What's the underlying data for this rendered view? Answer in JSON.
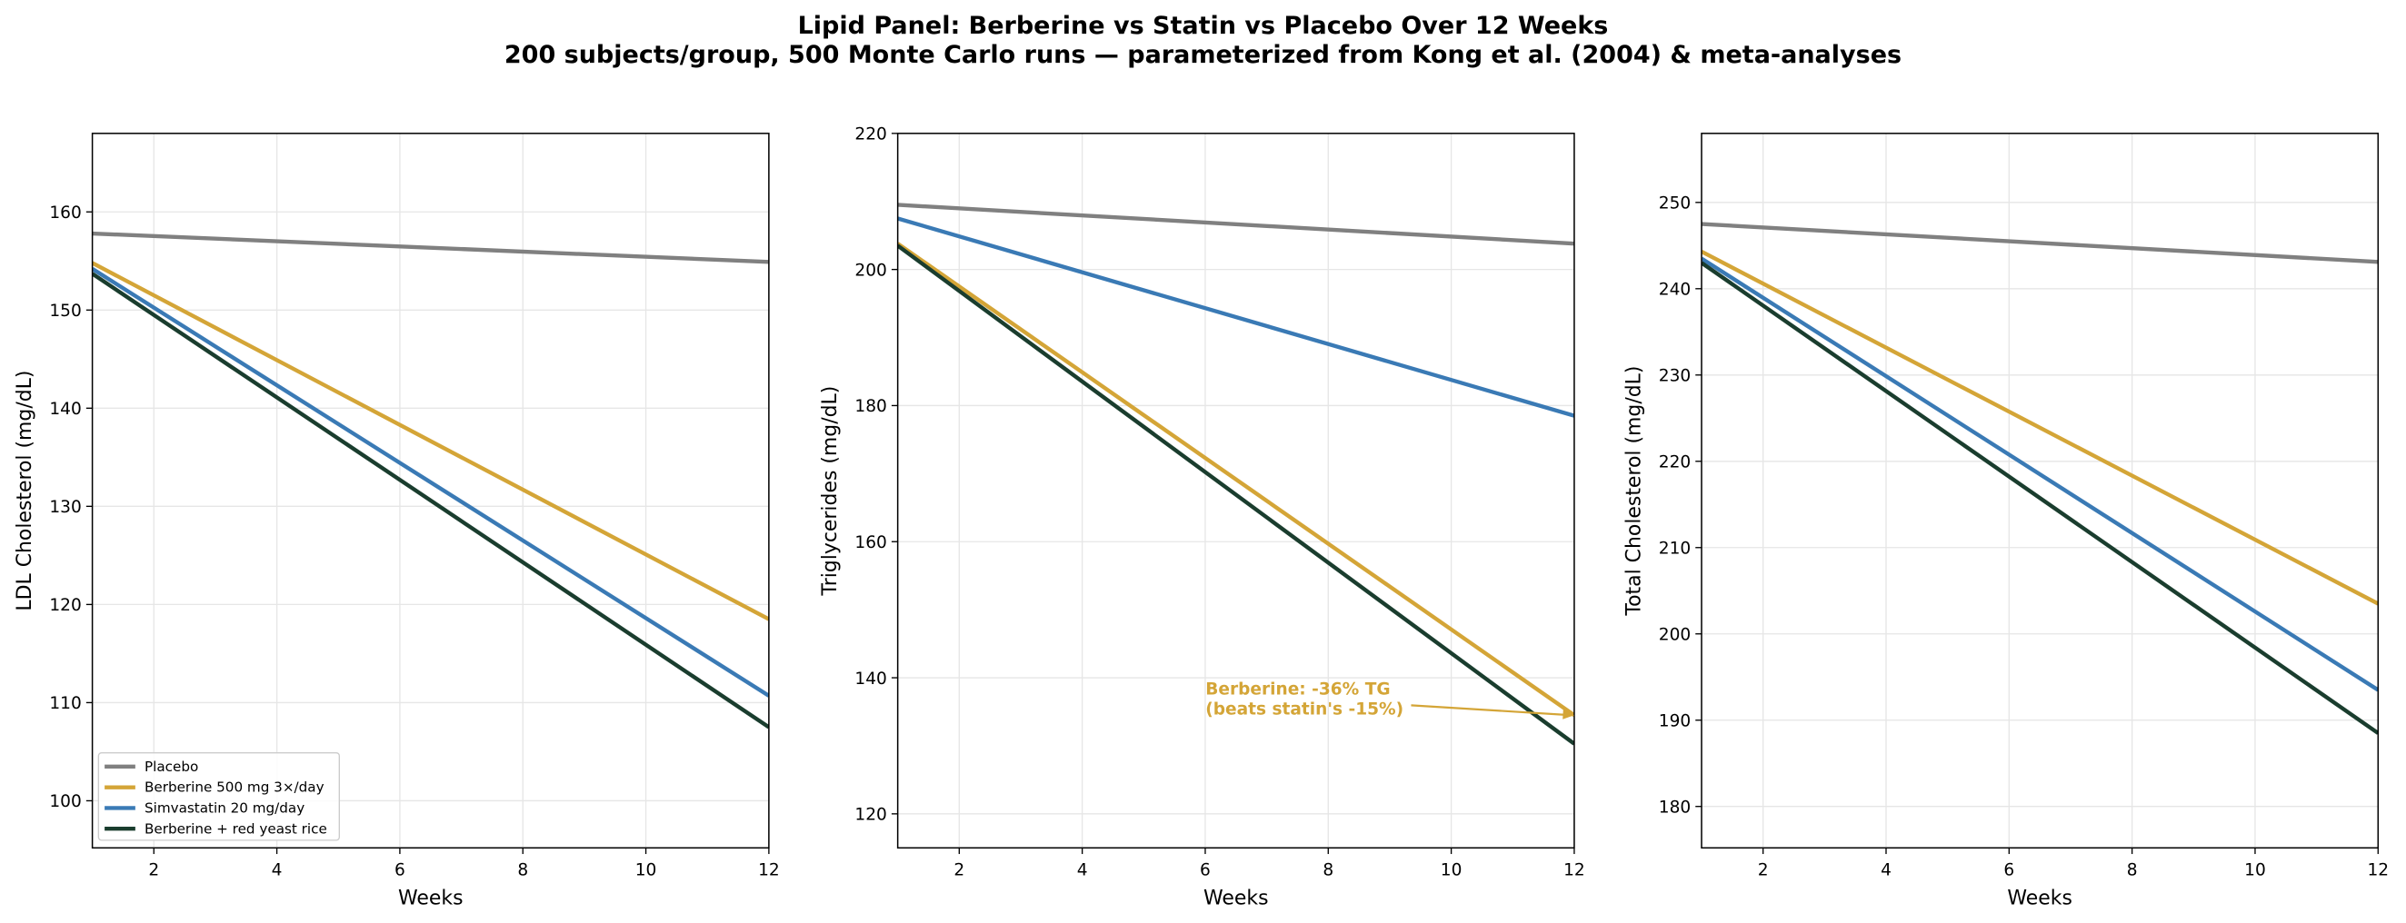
{
  "title": "Lipid Panel: Berberine vs Statin vs Placebo Over 12 Weeks",
  "subtitle": "200 subjects/group, 500 Monte Carlo runs — parameterized from Kong et al. (2004) & meta-analyses",
  "chart_data": [
    {
      "type": "line",
      "x_label": "Weeks",
      "y_label": "LDL Cholesterol (mg/dL)",
      "grid": true,
      "legend": "lower left",
      "x": [
        1,
        12
      ],
      "xlim": [
        1,
        12
      ],
      "xticks": [
        2,
        4,
        6,
        8,
        10,
        12
      ],
      "ylim": [
        95.2,
        168
      ],
      "yticks": [
        100,
        110,
        120,
        130,
        140,
        150,
        160
      ],
      "series": [
        {
          "name": "Placebo",
          "color": "#808080",
          "values": [
            157.8,
            154.9
          ]
        },
        {
          "name": "Berberine 500 mg 3×/day",
          "color": "#d4a537",
          "values": [
            154.8,
            118.5
          ]
        },
        {
          "name": "Simvastatin 20 mg/day",
          "color": "#3a7ab5",
          "values": [
            154.2,
            110.7
          ]
        },
        {
          "name": "Berberine + red yeast rice",
          "color": "#1a3d2e",
          "values": [
            153.7,
            107.5
          ]
        }
      ]
    },
    {
      "type": "line",
      "x_label": "Weeks",
      "y_label": "Triglycerides (mg/dL)",
      "grid": true,
      "x": [
        1,
        12
      ],
      "xlim": [
        1,
        12
      ],
      "xticks": [
        2,
        4,
        6,
        8,
        10,
        12
      ],
      "ylim": [
        115,
        220
      ],
      "yticks": [
        120,
        140,
        160,
        180,
        200,
        220
      ],
      "series": [
        {
          "color": "#808080",
          "values": [
            209.5,
            203.8
          ]
        },
        {
          "color": "#d4a537",
          "values": [
            203.8,
            134.5
          ]
        },
        {
          "color": "#3a7ab5",
          "values": [
            207.5,
            178.5
          ]
        },
        {
          "color": "#1a3d2e",
          "values": [
            203.5,
            130.3
          ]
        }
      ],
      "annotation": {
        "lines": [
          "Berberine: -36% TG",
          "(beats statin's -15%)"
        ],
        "color": "#d4a537"
      }
    },
    {
      "type": "line",
      "x_label": "Weeks",
      "y_label": "Total Cholesterol (mg/dL)",
      "grid": true,
      "x": [
        1,
        12
      ],
      "xlim": [
        1,
        12
      ],
      "xticks": [
        2,
        4,
        6,
        8,
        10,
        12
      ],
      "ylim": [
        175.2,
        258
      ],
      "yticks": [
        180,
        190,
        200,
        210,
        220,
        230,
        240,
        250
      ],
      "series": [
        {
          "color": "#808080",
          "values": [
            247.5,
            243.1
          ]
        },
        {
          "color": "#d4a537",
          "values": [
            244.3,
            203.5
          ]
        },
        {
          "color": "#3a7ab5",
          "values": [
            243.5,
            193.5
          ]
        },
        {
          "color": "#1a3d2e",
          "values": [
            243.0,
            188.5
          ]
        }
      ]
    }
  ]
}
